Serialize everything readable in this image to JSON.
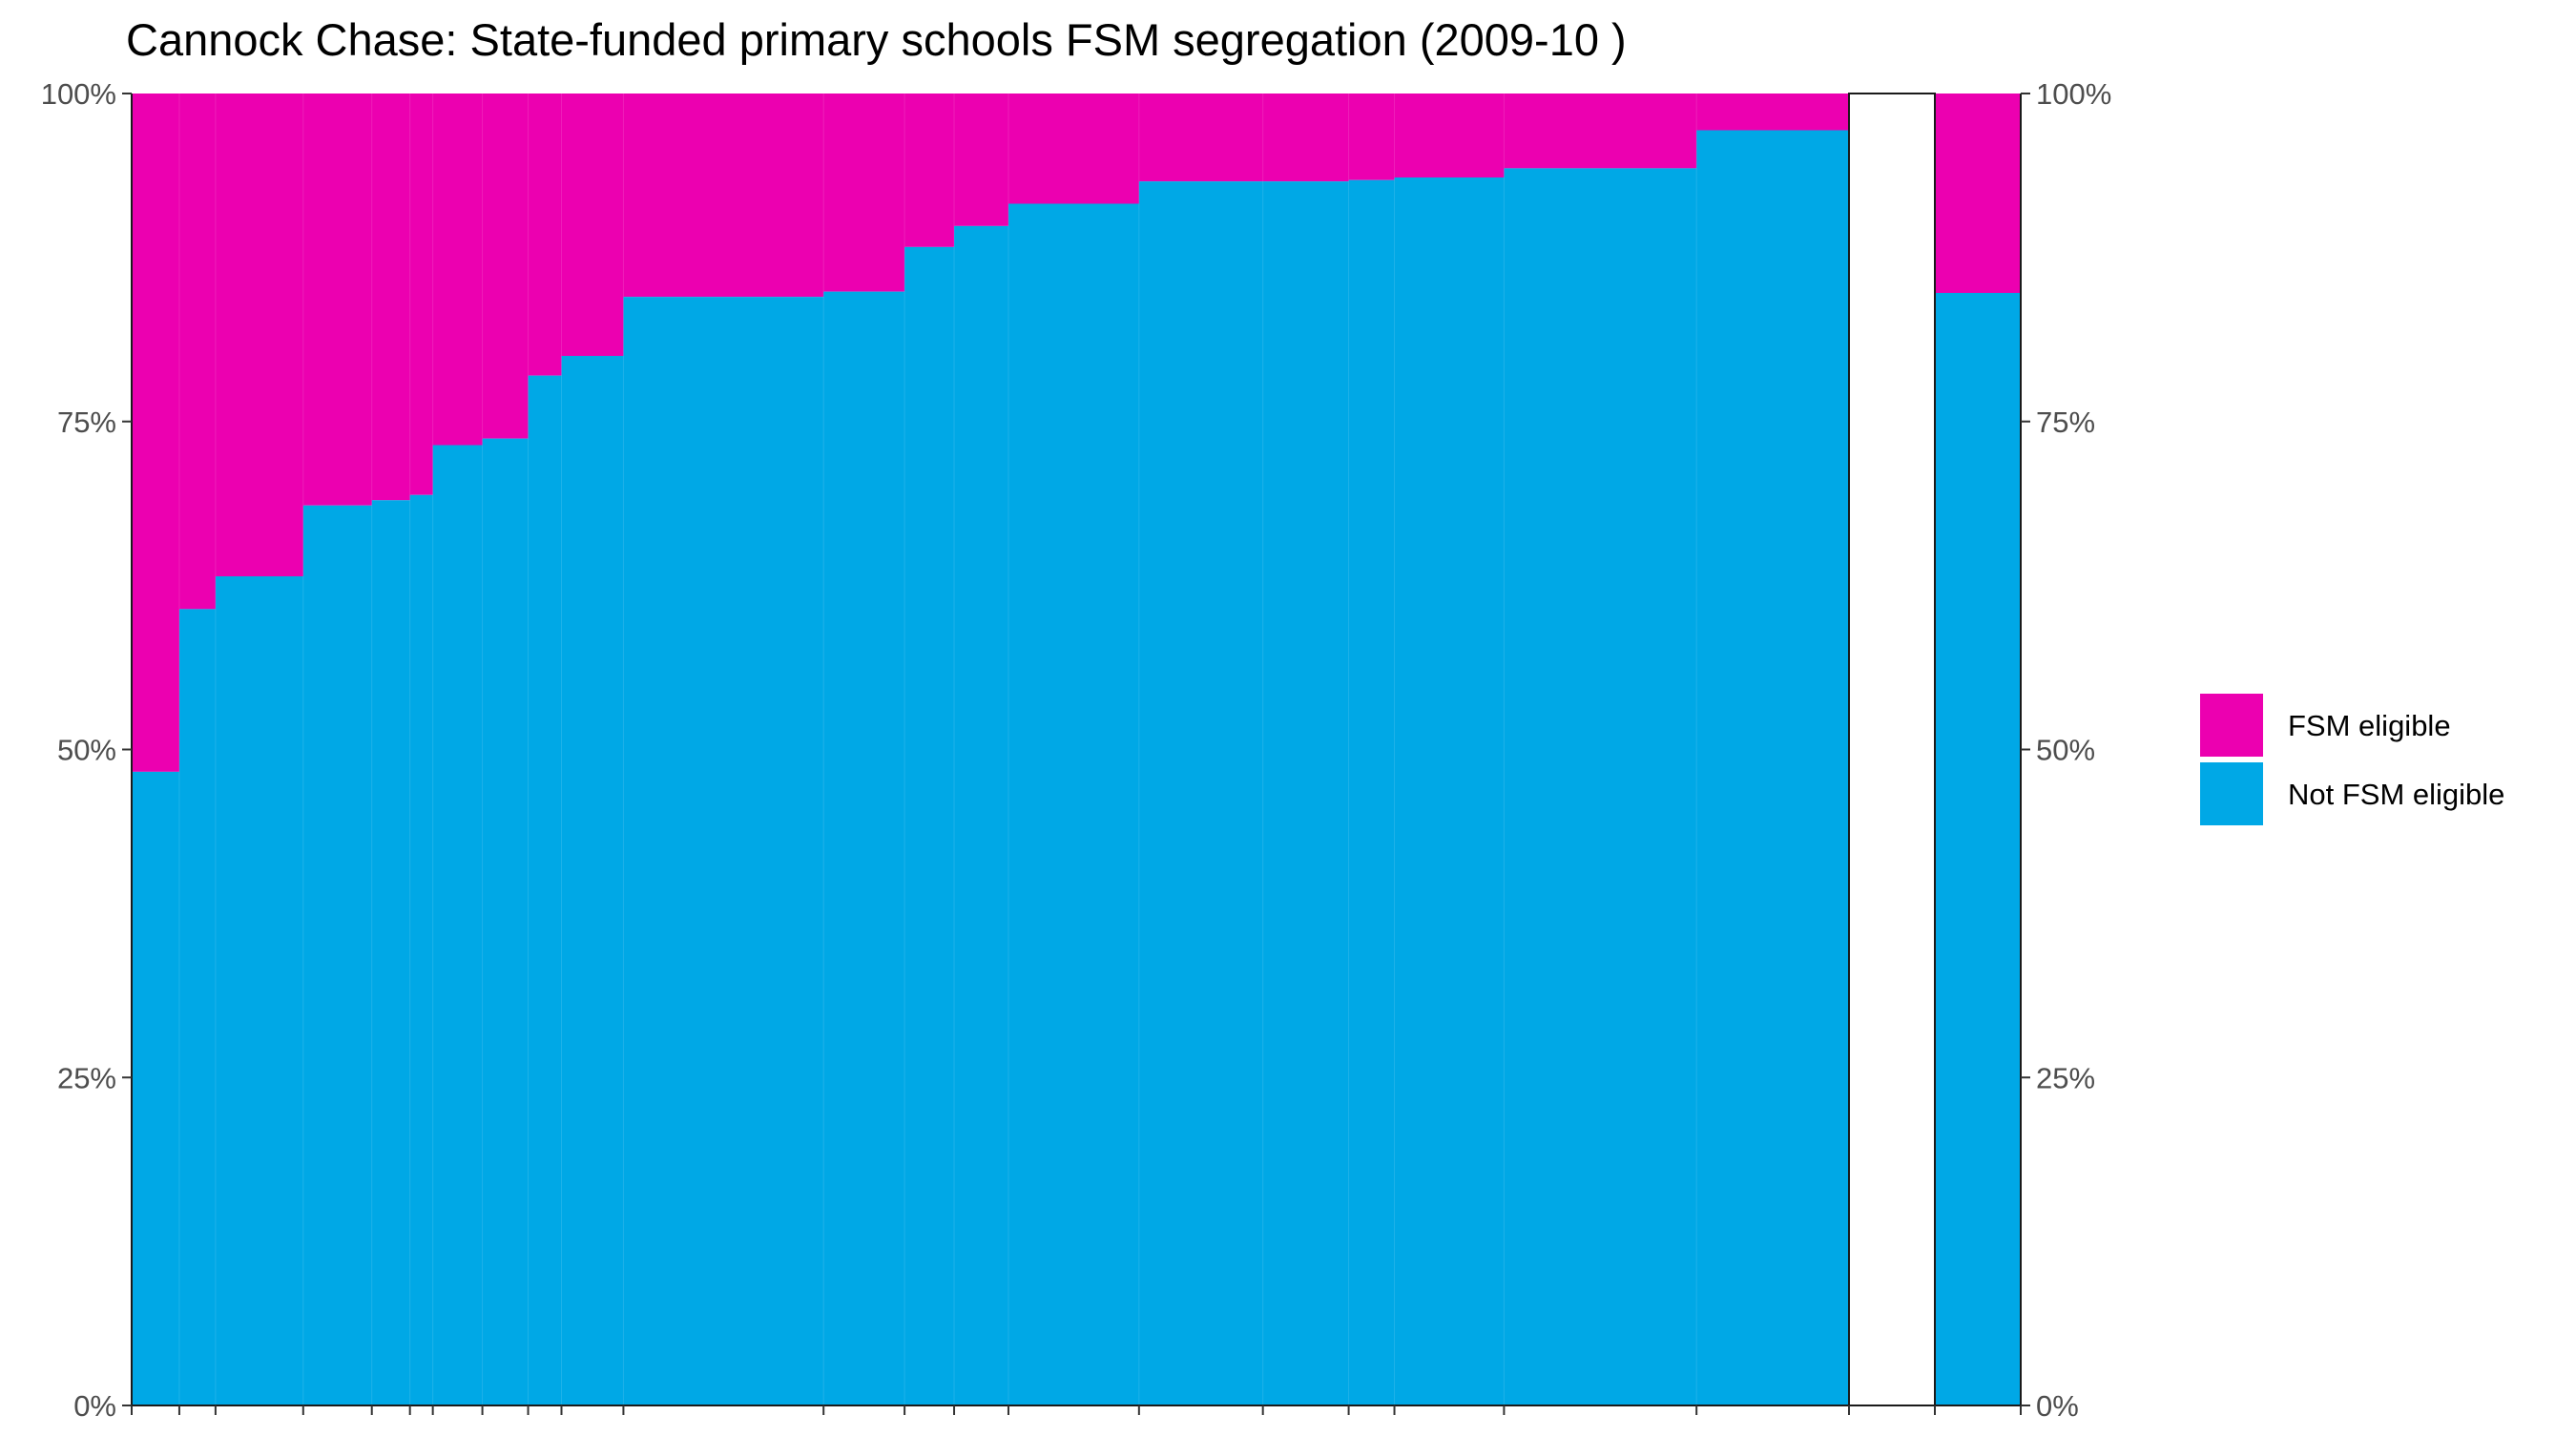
{
  "chart_data": {
    "type": "bar",
    "title": "Cannock Chase: State-funded primary schools FSM segregation (2009-10 )",
    "subtitle": "",
    "xlabel": "",
    "ylabel": "",
    "stacked": true,
    "variable_width": true,
    "ylim": [
      0,
      100
    ],
    "y_ticks": [
      "0%",
      "25%",
      "50%",
      "75%",
      "100%"
    ],
    "y_tick_values": [
      0,
      25,
      50,
      75,
      100
    ],
    "secondary_y_axis": true,
    "grid": false,
    "legend_position": "right",
    "colors": {
      "FSM eligible": "#ec00b0",
      "Not FSM eligible": "#00a8e6"
    },
    "series": [
      {
        "name": "FSM eligible",
        "color": "#ec00b0"
      },
      {
        "name": "Not FSM eligible",
        "color": "#00a8e6"
      }
    ],
    "schools": [
      {
        "pupils": 50,
        "not_fsm_pct": 48.3
      },
      {
        "pupils": 38,
        "not_fsm_pct": 60.7
      },
      {
        "pupils": 92,
        "not_fsm_pct": 63.2
      },
      {
        "pupils": 72,
        "not_fsm_pct": 68.6
      },
      {
        "pupils": 40,
        "not_fsm_pct": 69.0
      },
      {
        "pupils": 24,
        "not_fsm_pct": 69.4
      },
      {
        "pupils": 52,
        "not_fsm_pct": 73.2
      },
      {
        "pupils": 48,
        "not_fsm_pct": 73.7
      },
      {
        "pupils": 35,
        "not_fsm_pct": 78.5
      },
      {
        "pupils": 65,
        "not_fsm_pct": 80.0
      },
      {
        "pupils": 210,
        "not_fsm_pct": 84.5
      },
      {
        "pupils": 85,
        "not_fsm_pct": 84.9
      },
      {
        "pupils": 52,
        "not_fsm_pct": 88.3
      },
      {
        "pupils": 57,
        "not_fsm_pct": 89.9
      },
      {
        "pupils": 137,
        "not_fsm_pct": 91.6
      },
      {
        "pupils": 130,
        "not_fsm_pct": 93.3
      },
      {
        "pupils": 90,
        "not_fsm_pct": 93.3
      },
      {
        "pupils": 48,
        "not_fsm_pct": 93.4
      },
      {
        "pupils": 115,
        "not_fsm_pct": 93.6
      },
      {
        "pupils": 202,
        "not_fsm_pct": 94.3
      },
      {
        "pupils": 160,
        "not_fsm_pct": 97.2
      }
    ],
    "total_bar": {
      "not_fsm_pct": 84.8
    }
  },
  "legend": {
    "items": [
      {
        "label": "FSM eligible",
        "color": "#ec00b0"
      },
      {
        "label": "Not FSM eligible",
        "color": "#00a8e6"
      }
    ]
  }
}
